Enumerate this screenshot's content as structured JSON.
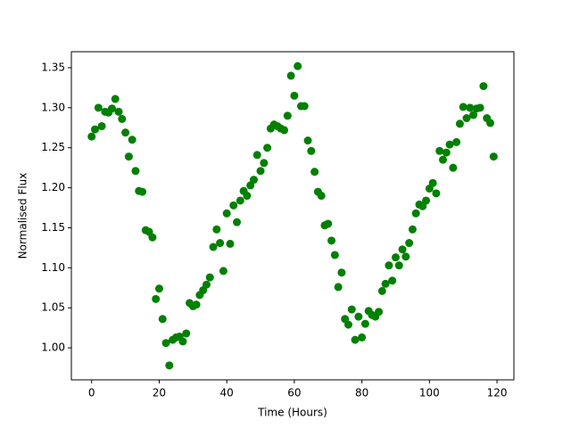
{
  "chart_data": {
    "type": "scatter",
    "xlabel": "Time (Hours)",
    "ylabel": "Normalised Flux",
    "color": "#008000",
    "x": [
      0,
      1,
      2,
      3,
      4,
      5,
      6,
      7,
      8,
      9,
      10,
      11,
      12,
      13,
      14,
      15,
      16,
      17,
      18,
      19,
      20,
      21,
      22,
      23,
      24,
      25,
      26,
      27,
      28,
      29,
      30,
      31,
      32,
      33,
      34,
      35,
      36,
      37,
      38,
      39,
      40,
      41,
      42,
      43,
      44,
      45,
      46,
      47,
      48,
      49,
      50,
      51,
      52,
      53,
      54,
      55,
      56,
      57,
      58,
      59,
      60,
      61,
      62,
      63,
      64,
      65,
      66,
      67,
      68,
      69,
      70,
      71,
      72,
      73,
      74,
      75,
      76,
      77,
      78,
      79,
      80,
      81,
      82,
      83,
      84,
      85,
      86,
      87,
      88,
      89,
      90,
      91,
      92,
      93,
      94,
      95,
      96,
      97,
      98,
      99,
      100,
      101,
      102,
      103,
      104,
      105,
      106,
      107,
      108,
      109,
      110,
      111,
      112,
      113,
      114,
      115,
      116,
      117,
      118,
      119
    ],
    "values": [
      1.264,
      1.273,
      1.3,
      1.277,
      1.295,
      1.294,
      1.299,
      1.311,
      1.295,
      1.286,
      1.269,
      1.239,
      1.26,
      1.221,
      1.196,
      1.195,
      1.147,
      1.145,
      1.138,
      1.061,
      1.074,
      1.036,
      1.006,
      0.978,
      1.01,
      1.013,
      1.014,
      1.008,
      1.018,
      1.056,
      1.052,
      1.054,
      1.066,
      1.072,
      1.079,
      1.088,
      1.126,
      1.148,
      1.131,
      1.096,
      1.168,
      1.13,
      1.178,
      1.157,
      1.184,
      1.196,
      1.19,
      1.203,
      1.21,
      1.241,
      1.221,
      1.231,
      1.25,
      1.274,
      1.279,
      1.277,
      1.274,
      1.272,
      1.29,
      1.34,
      1.315,
      1.352,
      1.302,
      1.302,
      1.259,
      1.246,
      1.22,
      1.195,
      1.19,
      1.153,
      1.155,
      1.134,
      1.116,
      1.076,
      1.094,
      1.036,
      1.029,
      1.048,
      1.01,
      1.039,
      1.013,
      1.03,
      1.046,
      1.041,
      1.039,
      1.045,
      1.071,
      1.08,
      1.103,
      1.084,
      1.113,
      1.103,
      1.123,
      1.114,
      1.131,
      1.148,
      1.168,
      1.179,
      1.177,
      1.184,
      1.199,
      1.206,
      1.193,
      1.246,
      1.235,
      1.244,
      1.254,
      1.225,
      1.257,
      1.28,
      1.301,
      1.287,
      1.3,
      1.291,
      1.299,
      1.3,
      1.327,
      1.287,
      1.281,
      1.239
    ],
    "xlim": [
      -6,
      125
    ],
    "xticks": [
      0,
      20,
      40,
      60,
      80,
      100,
      120
    ],
    "ylim": [
      0.96,
      1.37
    ],
    "yticks": [
      {
        "value": 1,
        "label": "1.00"
      },
      1.05,
      {
        "value": 1.1,
        "label": "1.10"
      },
      1.15,
      {
        "value": 1.2,
        "label": "1.20"
      },
      1.25,
      {
        "value": 1.3,
        "label": "1.30"
      },
      1.35
    ]
  }
}
